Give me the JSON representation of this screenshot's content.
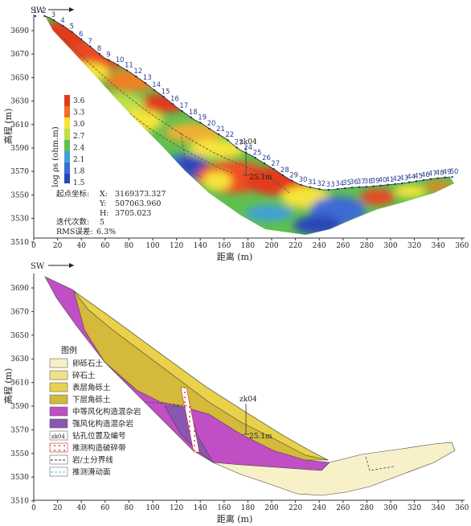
{
  "top_panel": {
    "direction_label": "SW",
    "ylabel": "高程 (m)",
    "xlabel": "距离 (m)",
    "y_ticks": [
      "3690",
      "3670",
      "3650",
      "3630",
      "3610",
      "3590",
      "3570",
      "3550",
      "3530",
      "3510"
    ],
    "x_ticks": [
      "0",
      "20",
      "40",
      "60",
      "80",
      "100",
      "120",
      "140",
      "160",
      "180",
      "200",
      "220",
      "240",
      "260",
      "280",
      "300",
      "320",
      "340",
      "360"
    ],
    "colorbar_label": "log ρs (ohm.m)",
    "colorbar_ticks": [
      "3.6",
      "3.3",
      "3.0",
      "2.7",
      "2.4",
      "2.1",
      "1.8",
      "1.5"
    ],
    "electrodes": [
      "1",
      "2",
      "3",
      "4",
      "5",
      "6",
      "7",
      "8",
      "9",
      "10",
      "11",
      "12",
      "13",
      "14",
      "15",
      "16",
      "17",
      "18",
      "19",
      "20",
      "21",
      "22",
      "23",
      "24",
      "25",
      "26",
      "27",
      "28",
      "29",
      "30",
      "31",
      "32",
      "33",
      "34",
      "35",
      "36",
      "37",
      "38",
      "39",
      "40",
      "41",
      "42",
      "43",
      "44",
      "45",
      "46",
      "47",
      "48",
      "49",
      "50"
    ],
    "borehole_id": "zk04",
    "borehole_depth": "25.1m",
    "info": {
      "start_coord_label": "起点坐标:",
      "x_label": "X:",
      "x_value": "3169373.327",
      "y_label": "Y:",
      "y_value": "507063.960",
      "h_label": "H:",
      "h_value": "3705.023",
      "iter_label": "迭代次数:",
      "iter_value": "5",
      "rms_label": "RMS误差:",
      "rms_value": "6.3%"
    }
  },
  "bottom_panel": {
    "direction_label": "SW",
    "ylabel": "高程 (m)",
    "xlabel": "距离 (m)",
    "y_ticks": [
      "3690",
      "3670",
      "3650",
      "3630",
      "3610",
      "3590",
      "3570",
      "3550",
      "3530",
      "3510"
    ],
    "x_ticks": [
      "0",
      "20",
      "40",
      "60",
      "80",
      "100",
      "120",
      "140",
      "160",
      "180",
      "200",
      "220",
      "240",
      "260",
      "280",
      "300",
      "320",
      "340",
      "360"
    ],
    "borehole_id": "zk04",
    "borehole_depth": "25.1m",
    "legend_title": "图例",
    "legend": [
      {
        "label": "卵砾石土",
        "color": "#f8f0c8"
      },
      {
        "label": "碎石土",
        "color": "#f0e28a"
      },
      {
        "label": "表层角砾土",
        "color": "#e9d24a"
      },
      {
        "label": "下层角砾土",
        "color": "#d4b93a"
      },
      {
        "label": "中等风化构造混杂岩",
        "color": "#c04ec4"
      },
      {
        "label": "强风化构造混杂岩",
        "color": "#8a56b0"
      },
      {
        "label": "钻孔位置及编号",
        "color": "#ffffff"
      },
      {
        "label": "推测构造破碎带",
        "color": "#ffffff"
      },
      {
        "label": "岩/土分界线",
        "color": "#ffffff"
      },
      {
        "label": "推测滑动面",
        "color": "#ffffff"
      }
    ],
    "legend_icon_text": "zk04"
  }
}
